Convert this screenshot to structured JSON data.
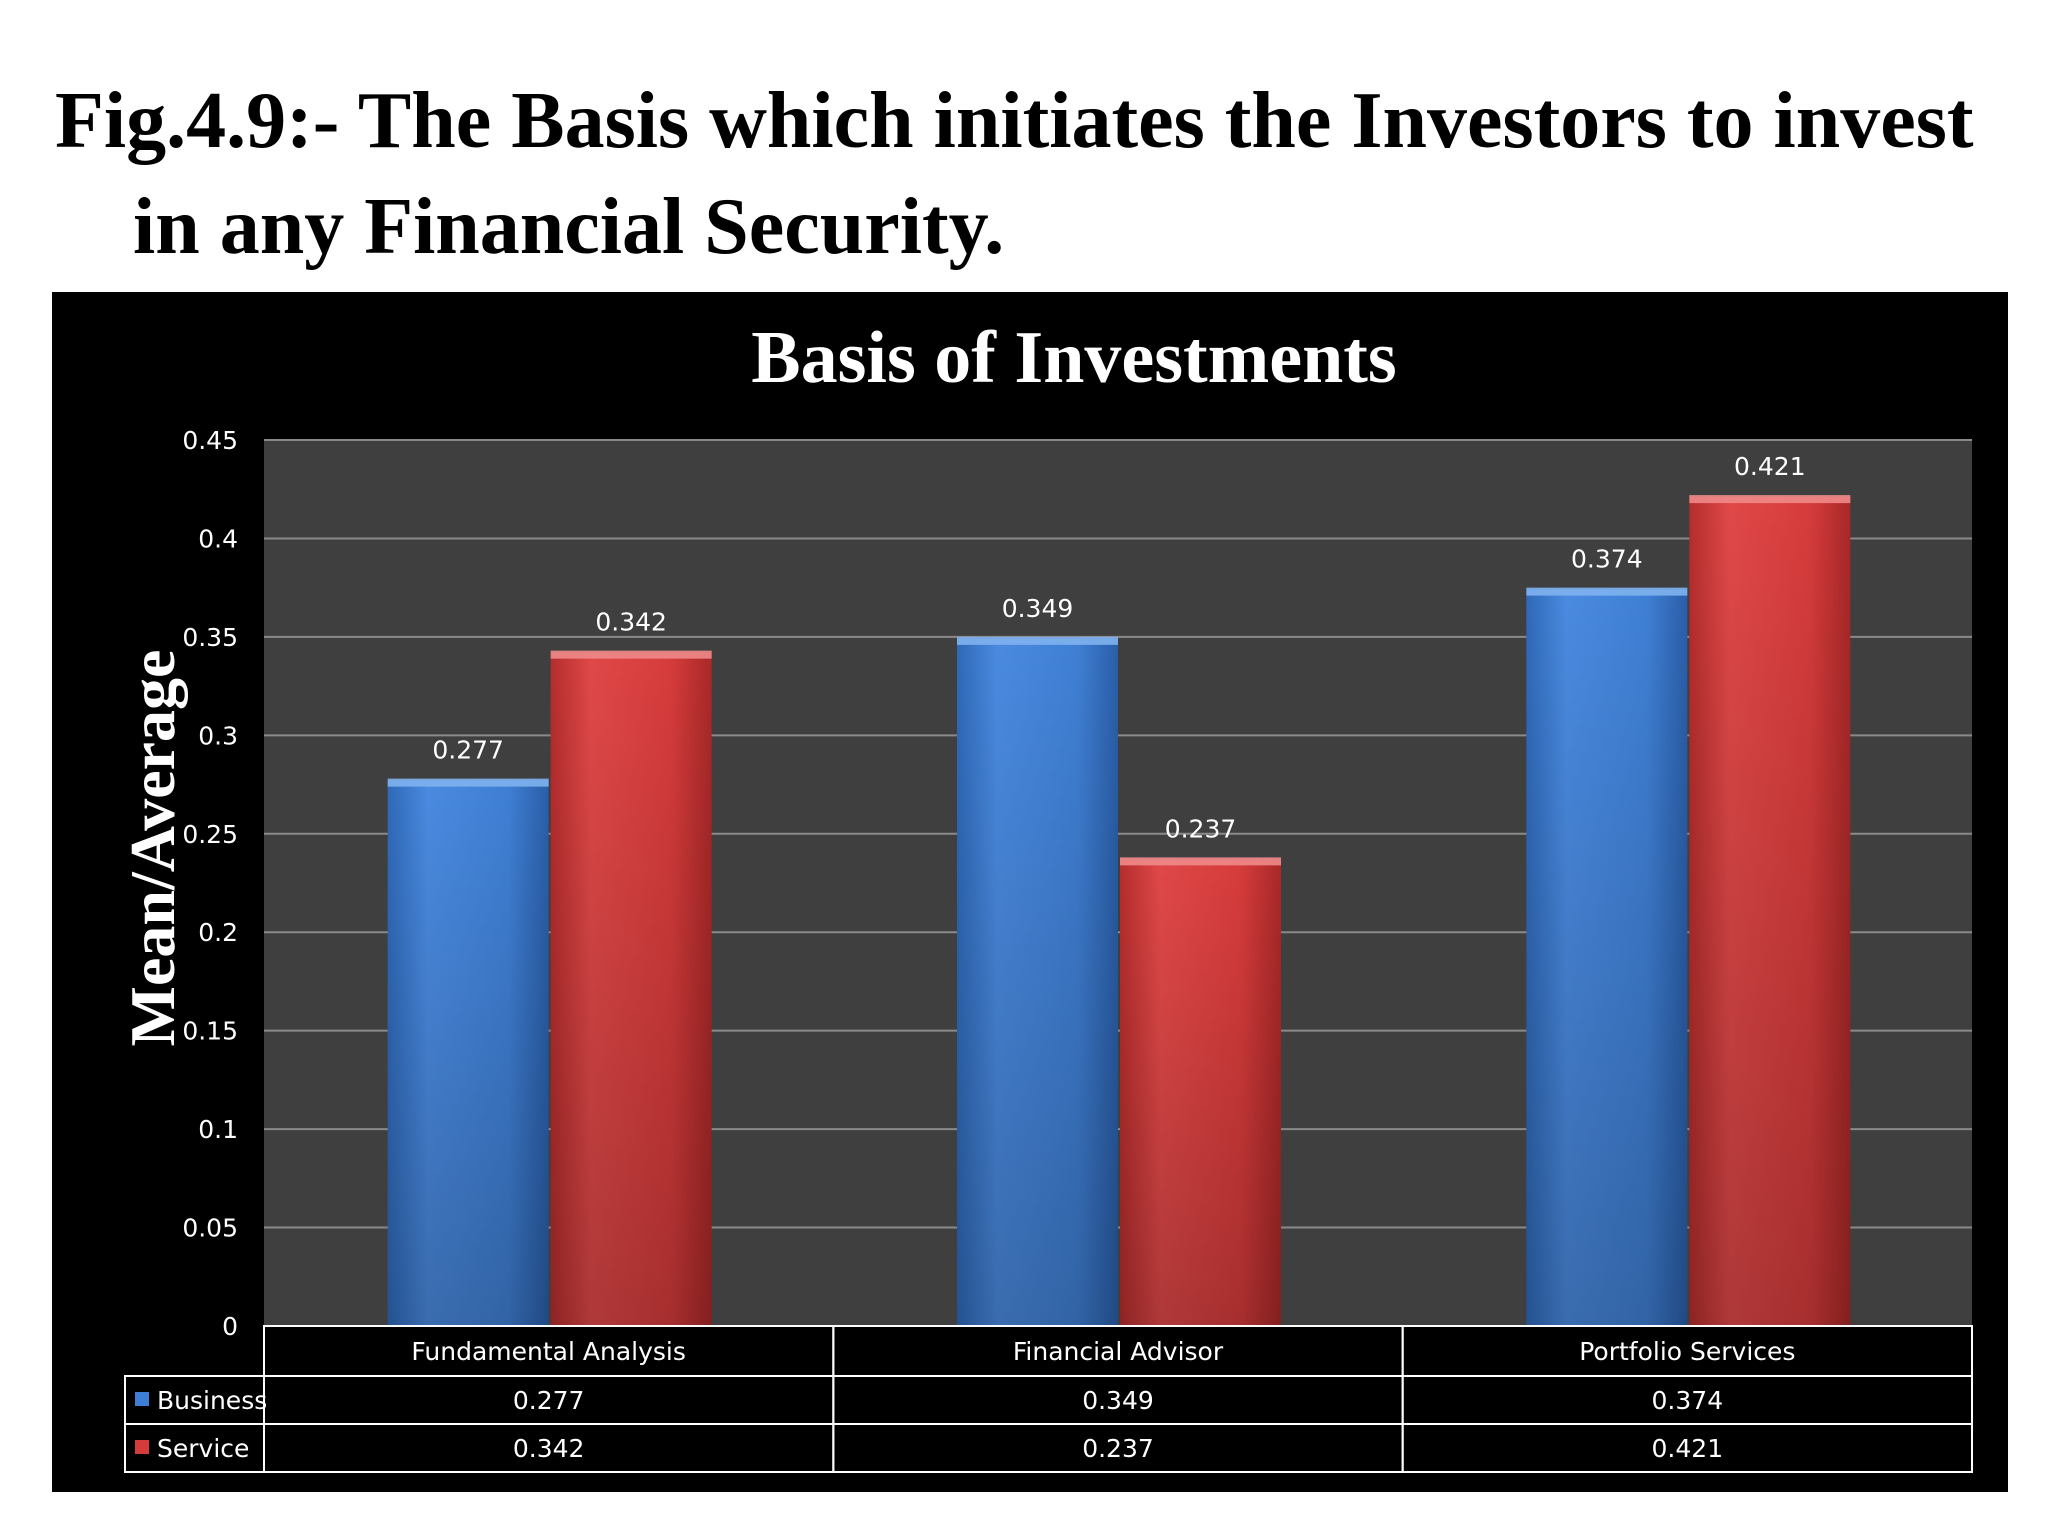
{
  "caption": {
    "line1": "Fig.4.9:- The Basis which initiates the Investors to invest",
    "line2": "in any Financial Security."
  },
  "chart_data": {
    "type": "bar",
    "title": "Basis of Investments",
    "xlabel": "",
    "ylabel": "Mean/Average",
    "ylim": [
      0,
      0.45
    ],
    "yticks": [
      "0",
      "0.05",
      "0.1",
      "0.15",
      "0.2",
      "0.25",
      "0.3",
      "0.35",
      "0.4",
      "0.45"
    ],
    "categories": [
      "Fundamental Analysis",
      "Financial Advisor",
      "Portfolio Services"
    ],
    "series": [
      {
        "name": "Business",
        "values": [
          0.277,
          0.349,
          0.374
        ],
        "labels": [
          "0.277",
          "0.349",
          "0.374"
        ],
        "color": "#3d7fd6"
      },
      {
        "name": "Service",
        "values": [
          0.342,
          0.237,
          0.421
        ],
        "labels": [
          "0.342",
          "0.237",
          "0.421"
        ],
        "color": "#d63b3b"
      }
    ],
    "grid": true,
    "legend": "data-table",
    "colors": {
      "background": "#000000",
      "plot_area": "#3f3f3f",
      "gridline": "#8a8a8a",
      "text": "#ffffff"
    }
  }
}
